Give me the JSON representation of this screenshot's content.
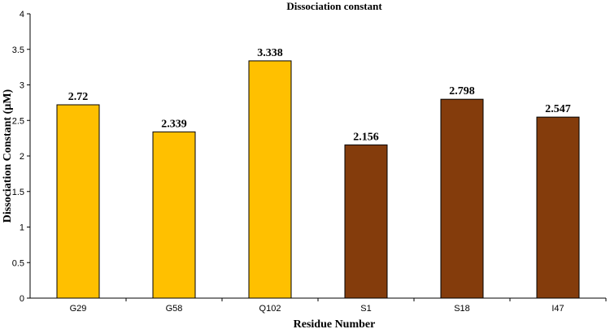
{
  "chart_data": {
    "type": "bar",
    "title": "Dissociation constant",
    "xlabel": "Residue Number",
    "ylabel": "Dissociation Constant (µM)",
    "categories": [
      "G29",
      "G58",
      "Q102",
      "S1",
      "S18",
      "I47"
    ],
    "values": [
      2.72,
      2.339,
      3.338,
      2.156,
      2.798,
      2.547
    ],
    "data_labels": [
      "2.72",
      "2.339",
      "3.338",
      "2.156",
      "2.798",
      "2.547"
    ],
    "bar_colors": [
      "#FFC000",
      "#FFC000",
      "#FFC000",
      "#843C0C",
      "#843C0C",
      "#843C0C"
    ],
    "ylim": [
      0,
      4
    ],
    "yticks": [
      0,
      0.5,
      1,
      1.5,
      2,
      2.5,
      3,
      3.5,
      4
    ],
    "ytick_labels": [
      "0",
      "0.5",
      "1",
      "1.5",
      "2",
      "2.5",
      "3",
      "3.5",
      "4"
    ],
    "grid": false,
    "legend": false
  }
}
